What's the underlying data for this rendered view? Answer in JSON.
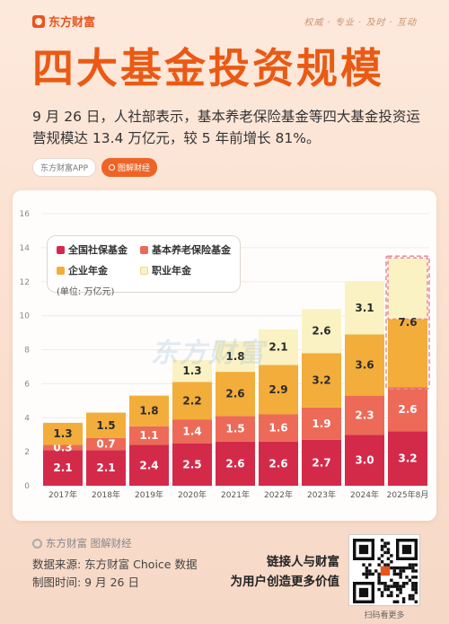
{
  "brand": {
    "name": "东方财富",
    "slogan": "权威 · 专业 · 及时 · 互动"
  },
  "headline": "四大基金投资规模",
  "description": "9 月 26 日，人社部表示，基本养老保险基金等四大基金投资运营规模达 13.4 万亿元，较 5 年前增长 81%。",
  "tags": {
    "app": "东方财富APP",
    "column": "图解财经"
  },
  "watermark": "东方财富",
  "chart_data": {
    "type": "bar",
    "stacked": true,
    "categories": [
      "2017年",
      "2018年",
      "2019年",
      "2020年",
      "2021年",
      "2022年",
      "2023年",
      "2024年",
      "2025年8月"
    ],
    "series": [
      {
        "name": "全国社保基金",
        "color": "#d42a4a",
        "values": [
          2.1,
          2.1,
          2.4,
          2.5,
          2.6,
          2.6,
          2.7,
          3.0,
          3.2
        ],
        "labels": [
          "2.1",
          "2.1",
          "2.4",
          "2.5",
          "2.6",
          "2.6",
          "2.7",
          "3.0",
          "3.2"
        ]
      },
      {
        "name": "基本养老保险基金",
        "color": "#ec6a57",
        "values": [
          0.3,
          0.7,
          1.1,
          1.4,
          1.5,
          1.6,
          1.9,
          2.3,
          2.6
        ],
        "labels": [
          "0.3",
          "0.7",
          "1.1",
          "1.4",
          "1.5",
          "1.6",
          "1.9",
          "2.3",
          "2.6"
        ]
      },
      {
        "name": "企业年金",
        "color": "#f3ad3b",
        "values": [
          1.3,
          1.5,
          1.8,
          2.2,
          2.6,
          2.9,
          3.2,
          3.6,
          4.0
        ],
        "labels": [
          "1.3",
          "1.5",
          "1.8",
          "2.2",
          "2.6",
          "2.9",
          "3.2",
          "3.6",
          ""
        ]
      },
      {
        "name": "职业年金",
        "color": "#fbf2c4",
        "values": [
          0,
          0,
          0,
          1.3,
          1.8,
          2.1,
          2.6,
          3.1,
          3.6
        ],
        "labels": [
          "",
          "",
          "",
          "1.3",
          "1.8",
          "2.1",
          "2.6",
          "3.1",
          ""
        ]
      }
    ],
    "combined_label": {
      "category": "2025年8月",
      "text": "7.6",
      "series": [
        "企业年金",
        "职业年金"
      ]
    },
    "unit": "(单位: 万亿元)",
    "ylim": [
      0,
      16
    ],
    "yticks": [
      0,
      2,
      4,
      6,
      8,
      10,
      12,
      14,
      16
    ],
    "grid": true,
    "legend_position": "top-left"
  },
  "footer": {
    "brand": "东方财富 图解财经",
    "source": "数据来源: 东方财富 Choice 数据",
    "date": "制图时间: 9 月 26 日",
    "cta_line1": "链接人与财富",
    "cta_line2": "为用户创造更多价值",
    "qr_caption": "扫码看更多"
  }
}
